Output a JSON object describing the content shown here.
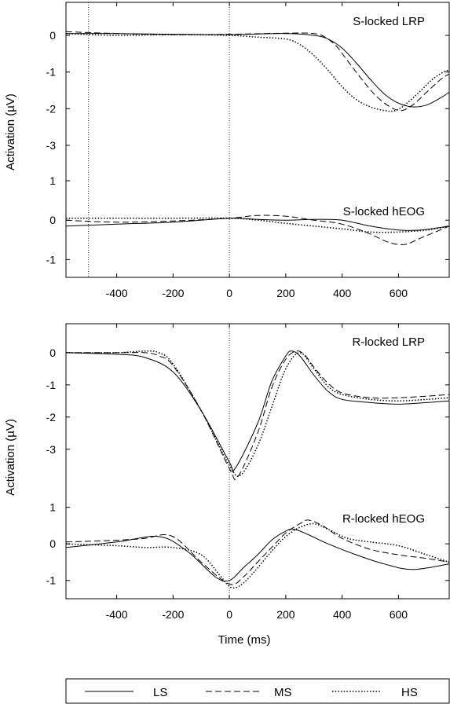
{
  "ylabel": "Activation (µV)",
  "xlabel": "Time (ms)",
  "legend": [
    {
      "label": "LS",
      "style": "solid"
    },
    {
      "label": "MS",
      "style": "dashed"
    },
    {
      "label": "HS",
      "style": "dotted"
    }
  ],
  "chart_data": [
    {
      "type": "line",
      "title": "S-locked LRP",
      "xlim": [
        -580,
        780
      ],
      "ylim": [
        -3.6,
        0.9
      ],
      "yticks": [
        "0",
        "-1",
        "-2",
        "-3"
      ],
      "ytick_values": [
        0,
        -1,
        -2,
        -3
      ],
      "vlines": [
        -500,
        0
      ],
      "series": [
        {
          "name": "LS",
          "x": [
            -580,
            -400,
            -200,
            0,
            200,
            300,
            350,
            400,
            450,
            500,
            550,
            600,
            650,
            700,
            750,
            780
          ],
          "y": [
            0.05,
            0.05,
            0.03,
            0.02,
            0.05,
            0.0,
            -0.1,
            -0.35,
            -0.75,
            -1.2,
            -1.6,
            -1.85,
            -1.95,
            -1.9,
            -1.7,
            -1.55
          ]
        },
        {
          "name": "MS",
          "x": [
            -580,
            -400,
            -200,
            0,
            200,
            300,
            340,
            380,
            420,
            470,
            520,
            570,
            610,
            650,
            700,
            750,
            780
          ],
          "y": [
            0.1,
            0.05,
            0.02,
            0.03,
            0.06,
            0.05,
            -0.05,
            -0.3,
            -0.7,
            -1.2,
            -1.65,
            -1.95,
            -2.05,
            -1.9,
            -1.55,
            -1.2,
            -1.05
          ]
        },
        {
          "name": "HS",
          "x": [
            -580,
            -400,
            -200,
            0,
            100,
            200,
            250,
            300,
            350,
            400,
            450,
            500,
            550,
            590,
            630,
            680,
            720,
            760,
            780
          ],
          "y": [
            0.05,
            0.0,
            0.02,
            0.0,
            -0.05,
            -0.1,
            -0.25,
            -0.55,
            -0.95,
            -1.4,
            -1.75,
            -1.95,
            -2.05,
            -2.05,
            -1.85,
            -1.5,
            -1.2,
            -1.0,
            -0.95
          ]
        }
      ]
    },
    {
      "type": "line",
      "title": "S-locked hEOG",
      "xlim": [
        -580,
        780
      ],
      "ylim": [
        -1.45,
        1.3
      ],
      "yticks": [
        "1",
        "0",
        "-1"
      ],
      "ytick_values": [
        1,
        0,
        -1
      ],
      "xticks": [
        -400,
        -200,
        0,
        200,
        400,
        600
      ],
      "vlines": [
        -500,
        0
      ],
      "series": [
        {
          "name": "LS",
          "x": [
            -580,
            -400,
            -200,
            0,
            100,
            200,
            300,
            400,
            500,
            600,
            680,
            780
          ],
          "y": [
            -0.15,
            -0.1,
            -0.05,
            0.05,
            0.02,
            0.0,
            0.02,
            0.0,
            -0.15,
            -0.25,
            -0.25,
            -0.15
          ]
        },
        {
          "name": "MS",
          "x": [
            -580,
            -400,
            -200,
            0,
            100,
            200,
            300,
            400,
            500,
            560,
            620,
            680,
            780
          ],
          "y": [
            0.0,
            -0.05,
            -0.02,
            0.05,
            0.12,
            0.1,
            0.0,
            -0.1,
            -0.35,
            -0.55,
            -0.62,
            -0.45,
            -0.15
          ]
        },
        {
          "name": "HS",
          "x": [
            -580,
            -400,
            -200,
            0,
            100,
            200,
            300,
            400,
            500,
            600,
            700,
            780
          ],
          "y": [
            0.05,
            0.05,
            0.05,
            0.05,
            0.0,
            -0.08,
            -0.15,
            -0.22,
            -0.3,
            -0.3,
            -0.25,
            -0.15
          ]
        }
      ]
    },
    {
      "type": "line",
      "title": "R-locked LRP",
      "xlim": [
        -580,
        780
      ],
      "ylim": [
        -4.3,
        0.9
      ],
      "yticks": [
        "0",
        "-1",
        "-2",
        "-3"
      ],
      "ytick_values": [
        0,
        -1,
        -2,
        -3
      ],
      "vlines": [
        0
      ],
      "series": [
        {
          "name": "LS",
          "x": [
            -580,
            -400,
            -300,
            -200,
            -100,
            0,
            20,
            100,
            150,
            200,
            220,
            250,
            300,
            350,
            400,
            500,
            600,
            700,
            780
          ],
          "y": [
            0.0,
            -0.05,
            -0.15,
            -0.6,
            -1.8,
            -3.4,
            -3.6,
            -2.2,
            -0.9,
            -0.1,
            0.05,
            -0.1,
            -0.7,
            -1.2,
            -1.45,
            -1.55,
            -1.6,
            -1.55,
            -1.5
          ]
        },
        {
          "name": "MS",
          "x": [
            -580,
            -400,
            -300,
            -250,
            -200,
            -100,
            0,
            30,
            100,
            150,
            200,
            240,
            270,
            300,
            350,
            400,
            500,
            600,
            700,
            780
          ],
          "y": [
            0.0,
            0.0,
            0.0,
            -0.1,
            -0.4,
            -1.8,
            -3.6,
            -3.85,
            -2.5,
            -1.1,
            -0.2,
            0.05,
            -0.1,
            -0.45,
            -0.95,
            -1.25,
            -1.4,
            -1.4,
            -1.35,
            -1.3
          ]
        },
        {
          "name": "HS",
          "x": [
            -580,
            -400,
            -300,
            -250,
            -200,
            -100,
            0,
            40,
            100,
            150,
            200,
            250,
            300,
            350,
            400,
            500,
            600,
            700,
            780
          ],
          "y": [
            0.0,
            0.0,
            0.05,
            0.0,
            -0.35,
            -1.8,
            -3.5,
            -3.8,
            -2.9,
            -1.7,
            -0.5,
            0.0,
            -0.5,
            -1.05,
            -1.3,
            -1.45,
            -1.5,
            -1.45,
            -1.4
          ]
        }
      ]
    },
    {
      "type": "line",
      "title": "R-locked hEOG",
      "xlim": [
        -580,
        780
      ],
      "ylim": [
        -1.5,
        1.4
      ],
      "yticks": [
        "1",
        "0",
        "-1"
      ],
      "ytick_values": [
        1,
        0,
        -1
      ],
      "xticks": [
        -400,
        -200,
        0,
        200,
        400,
        600
      ],
      "vlines": [
        0
      ],
      "series": [
        {
          "name": "LS",
          "x": [
            -580,
            -400,
            -250,
            -150,
            -50,
            0,
            50,
            100,
            150,
            200,
            230,
            280,
            350,
            450,
            550,
            650,
            780
          ],
          "y": [
            -0.1,
            0.05,
            0.2,
            -0.2,
            -0.9,
            -1.0,
            -0.65,
            -0.3,
            0.1,
            0.35,
            0.4,
            0.25,
            0.0,
            -0.3,
            -0.55,
            -0.7,
            -0.55
          ]
        },
        {
          "name": "MS",
          "x": [
            -580,
            -400,
            -300,
            -230,
            -180,
            -100,
            0,
            50,
            100,
            150,
            200,
            250,
            280,
            330,
            400,
            500,
            600,
            700,
            780
          ],
          "y": [
            0.05,
            0.1,
            0.15,
            0.25,
            0.1,
            -0.5,
            -1.1,
            -0.9,
            -0.5,
            -0.1,
            0.3,
            0.55,
            0.65,
            0.5,
            0.15,
            -0.15,
            -0.3,
            -0.4,
            -0.5
          ]
        },
        {
          "name": "HS",
          "x": [
            -580,
            -400,
            -300,
            -200,
            -100,
            -30,
            10,
            60,
            150,
            200,
            250,
            300,
            350,
            420,
            500,
            600,
            700,
            780
          ],
          "y": [
            0.0,
            -0.05,
            -0.1,
            -0.1,
            -0.3,
            -0.9,
            -1.2,
            -1.0,
            -0.2,
            0.2,
            0.45,
            0.55,
            0.4,
            0.15,
            0.05,
            -0.05,
            -0.3,
            -0.5
          ]
        }
      ]
    }
  ]
}
